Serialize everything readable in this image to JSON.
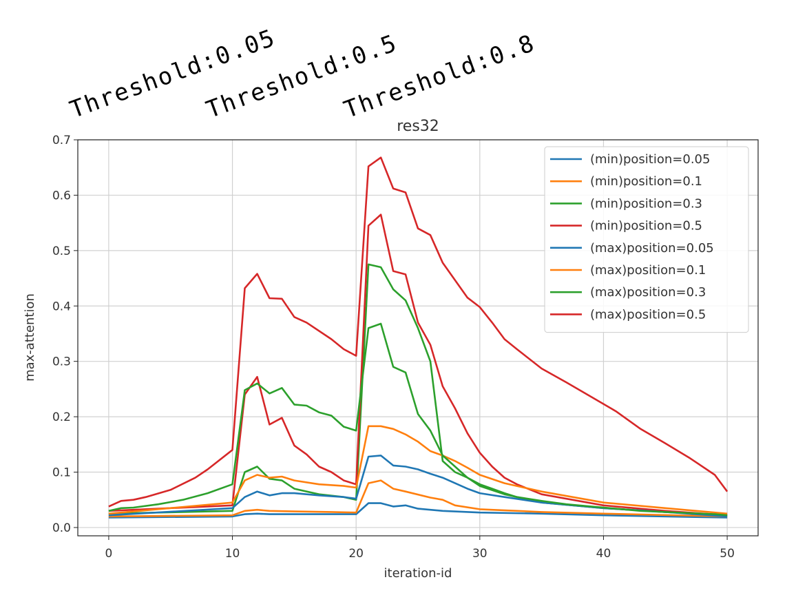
{
  "annotations": [
    "Threshold:0.05",
    "Threshold:0.5",
    "Threshold:0.8"
  ],
  "chart_data": {
    "type": "line",
    "title": "res32",
    "xlabel": "iteration-id",
    "ylabel": "max-attention",
    "xlim": [
      -2.5,
      52.5
    ],
    "ylim": [
      -0.015,
      0.7
    ],
    "xticks": [
      0,
      10,
      20,
      30,
      40,
      50
    ],
    "yticks": [
      0.0,
      0.1,
      0.2,
      0.3,
      0.4,
      0.5,
      0.6,
      0.7
    ],
    "xtick_labels": [
      "0",
      "10",
      "20",
      "30",
      "40",
      "50"
    ],
    "ytick_labels": [
      "0.0",
      "0.1",
      "0.2",
      "0.3",
      "0.4",
      "0.5",
      "0.6",
      "0.7"
    ],
    "grid": true,
    "legend_position": "top-right",
    "colors": {
      "blue": "#1f77b4",
      "orange": "#ff7f0e",
      "green": "#2ca02c",
      "red": "#d62728"
    },
    "series": [
      {
        "name": "(min)position=0.05",
        "color": "#1f77b4",
        "x": [
          0,
          10,
          11,
          12,
          13,
          14,
          16,
          18,
          20,
          21,
          22,
          23,
          24,
          25,
          27,
          30,
          35,
          40,
          50
        ],
        "y": [
          0.018,
          0.02,
          0.024,
          0.025,
          0.024,
          0.024,
          0.024,
          0.024,
          0.024,
          0.044,
          0.044,
          0.038,
          0.04,
          0.034,
          0.03,
          0.027,
          0.025,
          0.022,
          0.018
        ]
      },
      {
        "name": "(min)position=0.1",
        "color": "#ff7f0e",
        "x": [
          0,
          10,
          11,
          12,
          13,
          15,
          18,
          20,
          21,
          22,
          23,
          24,
          26,
          27,
          28,
          30,
          35,
          40,
          50
        ],
        "y": [
          0.02,
          0.022,
          0.03,
          0.032,
          0.03,
          0.029,
          0.028,
          0.027,
          0.08,
          0.085,
          0.07,
          0.065,
          0.054,
          0.05,
          0.04,
          0.033,
          0.028,
          0.025,
          0.02
        ]
      },
      {
        "name": "(min)position=0.3",
        "color": "#2ca02c",
        "x": [
          0,
          10,
          11,
          12,
          13,
          14,
          15,
          17,
          19,
          20,
          21,
          22,
          23,
          24,
          25,
          26,
          27,
          28,
          29,
          30,
          32,
          35,
          40,
          45,
          50
        ],
        "y": [
          0.025,
          0.03,
          0.1,
          0.11,
          0.088,
          0.085,
          0.07,
          0.06,
          0.055,
          0.05,
          0.475,
          0.47,
          0.43,
          0.41,
          0.36,
          0.3,
          0.12,
          0.1,
          0.09,
          0.075,
          0.06,
          0.045,
          0.035,
          0.028,
          0.022
        ]
      },
      {
        "name": "(min)position=0.5",
        "color": "#d62728",
        "x": [
          0,
          10,
          11,
          12,
          13,
          14,
          15,
          16,
          17,
          18,
          19,
          20,
          21,
          22,
          23,
          24,
          25,
          26,
          27,
          28,
          29,
          30,
          31,
          32,
          33,
          35,
          40,
          45,
          50
        ],
        "y": [
          0.03,
          0.04,
          0.24,
          0.272,
          0.186,
          0.198,
          0.148,
          0.132,
          0.11,
          0.1,
          0.085,
          0.078,
          0.545,
          0.565,
          0.463,
          0.457,
          0.37,
          0.33,
          0.255,
          0.215,
          0.17,
          0.135,
          0.11,
          0.09,
          0.078,
          0.06,
          0.04,
          0.03,
          0.022
        ]
      },
      {
        "name": "(max)position=0.05",
        "color": "#1f77b4",
        "x": [
          0,
          10,
          11,
          12,
          13,
          14,
          15,
          17,
          19,
          20,
          21,
          22,
          23,
          24,
          25,
          26,
          27,
          28,
          29,
          30,
          32,
          35,
          40,
          45,
          50
        ],
        "y": [
          0.022,
          0.035,
          0.055,
          0.065,
          0.058,
          0.062,
          0.062,
          0.058,
          0.055,
          0.052,
          0.128,
          0.13,
          0.112,
          0.11,
          0.105,
          0.097,
          0.09,
          0.08,
          0.07,
          0.062,
          0.055,
          0.045,
          0.035,
          0.028,
          0.02
        ]
      },
      {
        "name": "(max)position=0.1",
        "color": "#ff7f0e",
        "x": [
          0,
          10,
          11,
          12,
          13,
          14,
          15,
          17,
          19,
          20,
          21,
          22,
          23,
          24,
          25,
          26,
          27,
          28,
          29,
          30,
          32,
          35,
          40,
          45,
          50
        ],
        "y": [
          0.025,
          0.045,
          0.085,
          0.095,
          0.09,
          0.092,
          0.085,
          0.078,
          0.075,
          0.072,
          0.183,
          0.183,
          0.178,
          0.168,
          0.155,
          0.138,
          0.13,
          0.12,
          0.108,
          0.095,
          0.08,
          0.065,
          0.045,
          0.035,
          0.025
        ]
      },
      {
        "name": "(max)position=0.3",
        "color": "#2ca02c",
        "x": [
          0,
          1,
          2,
          4,
          6,
          8,
          10,
          11,
          12,
          13,
          14,
          15,
          16,
          17,
          18,
          19,
          20,
          21,
          22,
          23,
          24,
          25,
          26,
          27,
          28,
          29,
          30,
          31,
          32,
          33,
          35,
          37,
          39,
          41,
          43,
          45,
          47,
          49,
          50
        ],
        "y": [
          0.03,
          0.035,
          0.036,
          0.042,
          0.05,
          0.062,
          0.078,
          0.248,
          0.26,
          0.242,
          0.252,
          0.222,
          0.22,
          0.208,
          0.202,
          0.182,
          0.175,
          0.36,
          0.368,
          0.29,
          0.28,
          0.205,
          0.175,
          0.13,
          0.11,
          0.09,
          0.078,
          0.07,
          0.062,
          0.055,
          0.048,
          0.042,
          0.038,
          0.034,
          0.03,
          0.028,
          0.026,
          0.024,
          0.022
        ]
      },
      {
        "name": "(max)position=0.5",
        "color": "#d62728",
        "x": [
          0,
          1,
          2,
          3,
          5,
          7,
          8,
          10,
          11,
          12,
          13,
          14,
          15,
          16,
          18,
          19,
          20,
          21,
          22,
          23,
          24,
          25,
          26,
          27,
          29,
          30,
          31,
          32,
          33,
          35,
          37,
          39,
          41,
          43,
          45,
          47,
          49,
          50
        ],
        "y": [
          0.038,
          0.048,
          0.05,
          0.055,
          0.068,
          0.09,
          0.105,
          0.14,
          0.432,
          0.458,
          0.414,
          0.413,
          0.38,
          0.37,
          0.34,
          0.322,
          0.31,
          0.652,
          0.668,
          0.612,
          0.605,
          0.54,
          0.528,
          0.478,
          0.415,
          0.398,
          0.37,
          0.34,
          0.322,
          0.287,
          0.262,
          0.236,
          0.21,
          0.178,
          0.152,
          0.125,
          0.095,
          0.065
        ]
      }
    ]
  }
}
